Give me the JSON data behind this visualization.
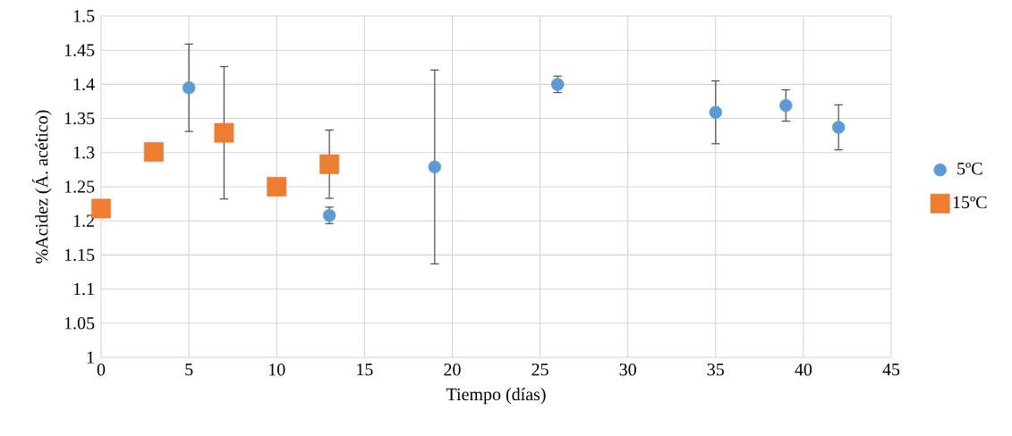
{
  "chart_data": {
    "type": "scatter",
    "xlabel": "Tiempo (días)",
    "ylabel": "%Acidez (Á. acético)",
    "xlim": [
      0,
      45
    ],
    "xticks": [
      0,
      5,
      10,
      15,
      20,
      25,
      30,
      35,
      40,
      45
    ],
    "ylim": [
      1,
      1.5
    ],
    "yticks": [
      1,
      1.05,
      1.1,
      1.15,
      1.2,
      1.25,
      1.3,
      1.35,
      1.4,
      1.45,
      1.5
    ],
    "grid": true,
    "legend": "right",
    "series": [
      {
        "name": "5ºC",
        "color": "#5b9bd5",
        "marker": "circle",
        "x": [
          5,
          13,
          19,
          26,
          35,
          39,
          42
        ],
        "values": [
          1.395,
          1.208,
          1.279,
          1.4,
          1.359,
          1.369,
          1.337
        ],
        "errors": [
          0.064,
          0.012,
          0.142,
          0.012,
          0.046,
          0.023,
          0.033
        ]
      },
      {
        "name": "15ºC",
        "color": "#ed7d31",
        "marker": "square",
        "x": [
          0,
          3,
          7,
          10,
          13
        ],
        "values": [
          1.218,
          1.301,
          1.329,
          1.25,
          1.283
        ],
        "errors": [
          null,
          null,
          0.097,
          null,
          0.05
        ]
      }
    ]
  }
}
